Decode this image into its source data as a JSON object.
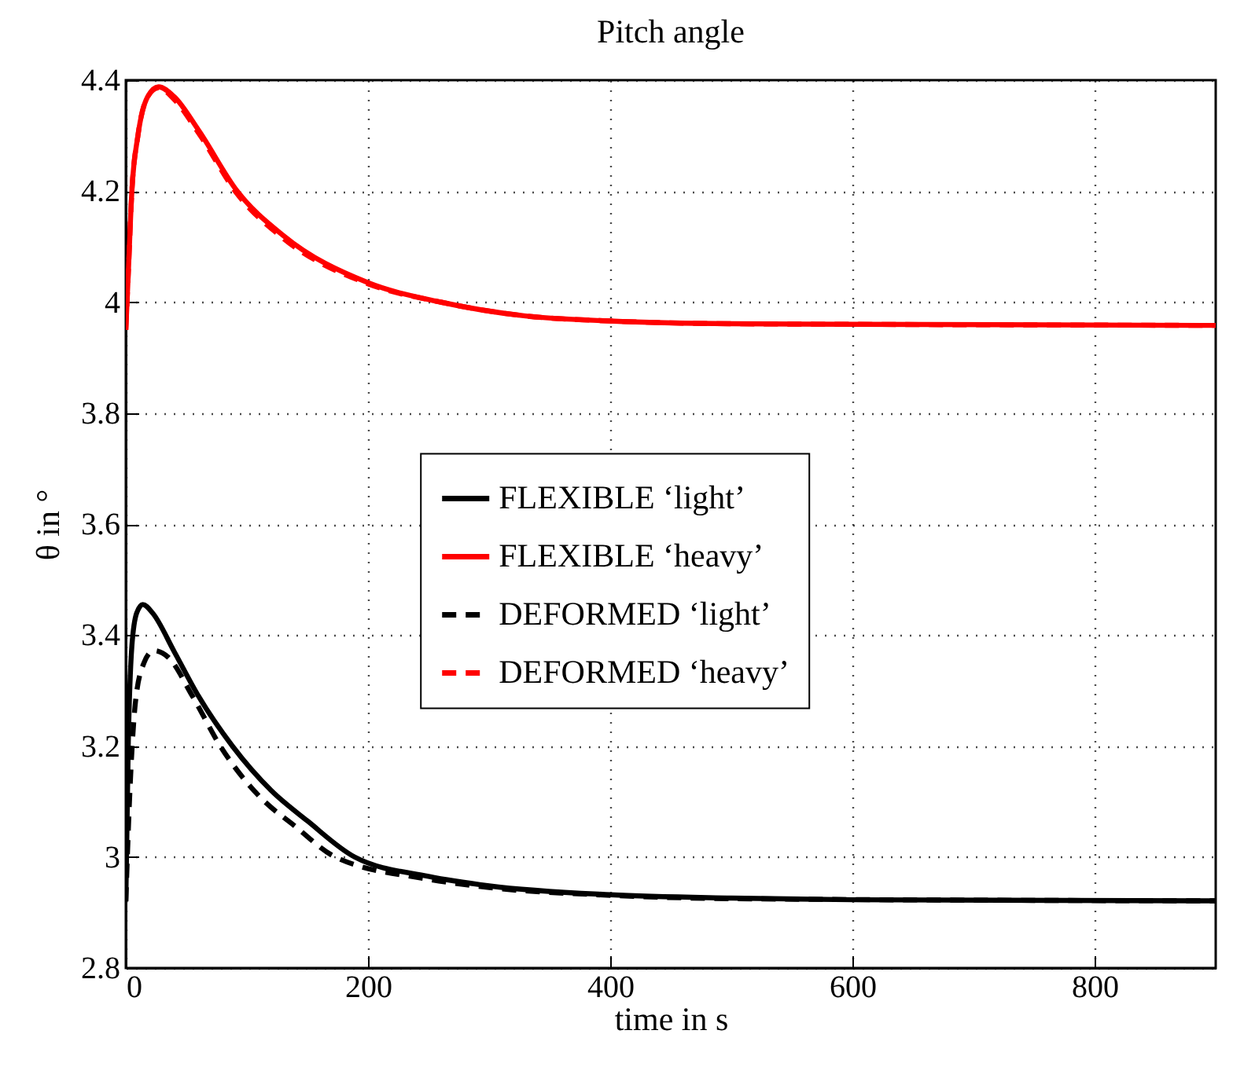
{
  "chart_data": {
    "type": "line",
    "title": "Pitch angle",
    "xlabel": "time in s",
    "ylabel": "θ in °",
    "xlim": [
      0,
      900
    ],
    "xticks": [
      0,
      200,
      400,
      600,
      800
    ],
    "ylim": [
      2.8,
      4.4
    ],
    "yticks": [
      2.8,
      3,
      3.2,
      3.4,
      3.6,
      3.8,
      4,
      4.2,
      4.4
    ],
    "grid": true,
    "legend": "center",
    "marker": "none",
    "series": [
      {
        "name": "FLEXIBLE ‘light’",
        "color": "#000000",
        "line_style": "solid",
        "x": [
          0,
          2,
          5,
          9,
          14,
          22,
          40,
          60,
          88,
          120,
          150,
          189,
          250,
          300,
          400,
          500,
          600,
          900
        ],
        "values": [
          2.92,
          3.2,
          3.38,
          3.44,
          3.455,
          3.44,
          3.37,
          3.29,
          3.2,
          3.12,
          3.065,
          3.0,
          2.965,
          2.948,
          2.932,
          2.926,
          2.923,
          2.921
        ]
      },
      {
        "name": "FLEXIBLE ‘heavy’",
        "color": "#ff0000",
        "line_style": "solid",
        "x": [
          0,
          2,
          5,
          10,
          18,
          27,
          40,
          60,
          92,
          130,
          200,
          260,
          330,
          400,
          500,
          600,
          900
        ],
        "values": [
          3.95,
          4.05,
          4.2,
          4.3,
          4.37,
          4.388,
          4.37,
          4.31,
          4.2,
          4.12,
          4.035,
          4.0,
          3.975,
          3.966,
          3.961,
          3.96,
          3.958
        ]
      },
      {
        "name": "DEFORMED ‘light’",
        "color": "#000000",
        "line_style": "dashed",
        "x": [
          0,
          3,
          8,
          15,
          23,
          35,
          55,
          78,
          110,
          140,
          173,
          250,
          300,
          400,
          500,
          900
        ],
        "values": [
          2.92,
          3.1,
          3.28,
          3.35,
          3.372,
          3.36,
          3.29,
          3.2,
          3.11,
          3.055,
          3.0,
          2.96,
          2.945,
          2.931,
          2.925,
          2.921
        ]
      },
      {
        "name": "DEFORMED ‘heavy’",
        "color": "#ff0000",
        "line_style": "dashed",
        "x": [
          0,
          2,
          5,
          10,
          18,
          27,
          40,
          60,
          92,
          130,
          200,
          260,
          330,
          400,
          500,
          600,
          900
        ],
        "values": [
          3.95,
          4.05,
          4.2,
          4.3,
          4.37,
          4.386,
          4.365,
          4.305,
          4.195,
          4.115,
          4.033,
          4.0,
          3.975,
          3.966,
          3.961,
          3.96,
          3.958
        ]
      }
    ]
  }
}
